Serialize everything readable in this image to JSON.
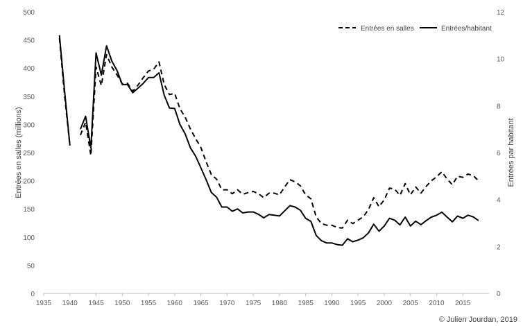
{
  "chart_data": {
    "type": "line",
    "title": "",
    "xlabel": "",
    "ylabel": "Entrées en salles (millions)",
    "y2label": "Entrées par habitant",
    "xlim": [
      1935,
      2020
    ],
    "ylim": [
      0,
      500
    ],
    "y2lim": [
      0,
      12
    ],
    "xticks": [
      1935,
      1940,
      1945,
      1950,
      1955,
      1960,
      1965,
      1970,
      1975,
      1980,
      1985,
      1990,
      1995,
      2000,
      2005,
      2010,
      2015
    ],
    "yticks": [
      0,
      50,
      100,
      150,
      200,
      250,
      300,
      350,
      400,
      450,
      500
    ],
    "y2ticks": [
      0,
      2,
      4,
      6,
      8,
      10,
      12
    ],
    "grid": false,
    "legend": "top-right",
    "series": [
      {
        "name": "Entrées en salles",
        "style": "dashed",
        "axis": "left",
        "segments": [
          {
            "x": [
              1938,
              1939,
              1940
            ],
            "values": [
              453,
              350,
              262
            ]
          },
          {
            "x": [
              1942,
              1943,
              1944,
              1945,
              1946,
              1947,
              1948,
              1949,
              1950,
              1951,
              1952,
              1953,
              1954,
              1955,
              1956,
              1957,
              1958,
              1959,
              1960,
              1961,
              1962,
              1963,
              1964,
              1965,
              1966,
              1967,
              1968,
              1969,
              1970,
              1971,
              1972,
              1973,
              1974,
              1975,
              1976,
              1977,
              1978,
              1979,
              1980,
              1981,
              1982,
              1983,
              1984,
              1985,
              1986,
              1987,
              1988,
              1989,
              1990,
              1991,
              1992,
              1993,
              1994,
              1995,
              1996,
              1997,
              1998,
              1999,
              2000,
              2001,
              2002,
              2003,
              2004,
              2005,
              2006,
              2007,
              2008,
              2009,
              2010,
              2011,
              2012,
              2013,
              2014,
              2015,
              2016,
              2017,
              2018
            ],
            "values": [
              281,
              304,
              245,
              402,
              369,
              424,
              402,
              388,
              372,
              373,
              359,
              370,
              383,
              395,
              398,
              411,
              371,
              353,
              355,
              328,
              313,
              292,
              275,
              259,
              234,
              211,
              203,
              184,
              184,
              177,
              184,
              176,
              179,
              181,
              177,
              170,
              178,
              178,
              175,
              189,
              202,
              198,
              191,
              175,
              168,
              136,
              124,
              121,
              121,
              117,
              116,
              130,
              124,
              130,
              136,
              149,
              170,
              154,
              166,
              187,
              185,
              174,
              195,
              175,
              189,
              178,
              190,
              200,
              207,
              216,
              203,
              193,
              208,
              206,
              212,
              209,
              200
            ]
          }
        ]
      },
      {
        "name": "Entrées/habitant",
        "style": "solid",
        "axis": "right",
        "segments": [
          {
            "x": [
              1938,
              1939,
              1940
            ],
            "values": [
              11.0,
              8.6,
              6.3
            ]
          },
          {
            "x": [
              1942,
              1943,
              1944,
              1945,
              1946,
              1947,
              1948,
              1949,
              1950,
              1951,
              1952,
              1953,
              1954,
              1955,
              1956,
              1957,
              1958,
              1959,
              1960,
              1961,
              1962,
              1963,
              1964,
              1965,
              1966,
              1967,
              1968,
              1969,
              1970,
              1971,
              1972,
              1973,
              1974,
              1975,
              1976,
              1977,
              1978,
              1979,
              1980,
              1981,
              1982,
              1983,
              1984,
              1985,
              1986,
              1987,
              1988,
              1989,
              1990,
              1991,
              1992,
              1993,
              1994,
              1995,
              1996,
              1997,
              1998,
              1999,
              2000,
              2001,
              2002,
              2003,
              2004,
              2005,
              2006,
              2007,
              2008,
              2009,
              2010,
              2011,
              2012,
              2013,
              2014,
              2015,
              2016,
              2017,
              2018
            ],
            "values": [
              7.0,
              7.55,
              6.2,
              10.25,
              9.3,
              10.55,
              9.9,
              9.5,
              8.9,
              8.9,
              8.55,
              8.75,
              8.95,
              9.2,
              9.2,
              9.4,
              8.45,
              7.9,
              7.88,
              7.2,
              6.8,
              6.2,
              5.85,
              5.35,
              4.85,
              4.3,
              4.1,
              3.68,
              3.68,
              3.5,
              3.6,
              3.43,
              3.47,
              3.47,
              3.37,
              3.22,
              3.36,
              3.33,
              3.3,
              3.52,
              3.74,
              3.68,
              3.54,
              3.2,
              3.07,
              2.47,
              2.25,
              2.15,
              2.15,
              2.08,
              2.05,
              2.33,
              2.2,
              2.27,
              2.37,
              2.58,
              2.95,
              2.65,
              2.87,
              3.2,
              3.12,
              2.92,
              3.25,
              2.87,
              3.08,
              2.93,
              3.1,
              3.25,
              3.33,
              3.46,
              3.25,
              3.05,
              3.3,
              3.2,
              3.33,
              3.26,
              3.1
            ]
          }
        ]
      }
    ]
  },
  "credit": "© Julien Jourdan, 2019"
}
